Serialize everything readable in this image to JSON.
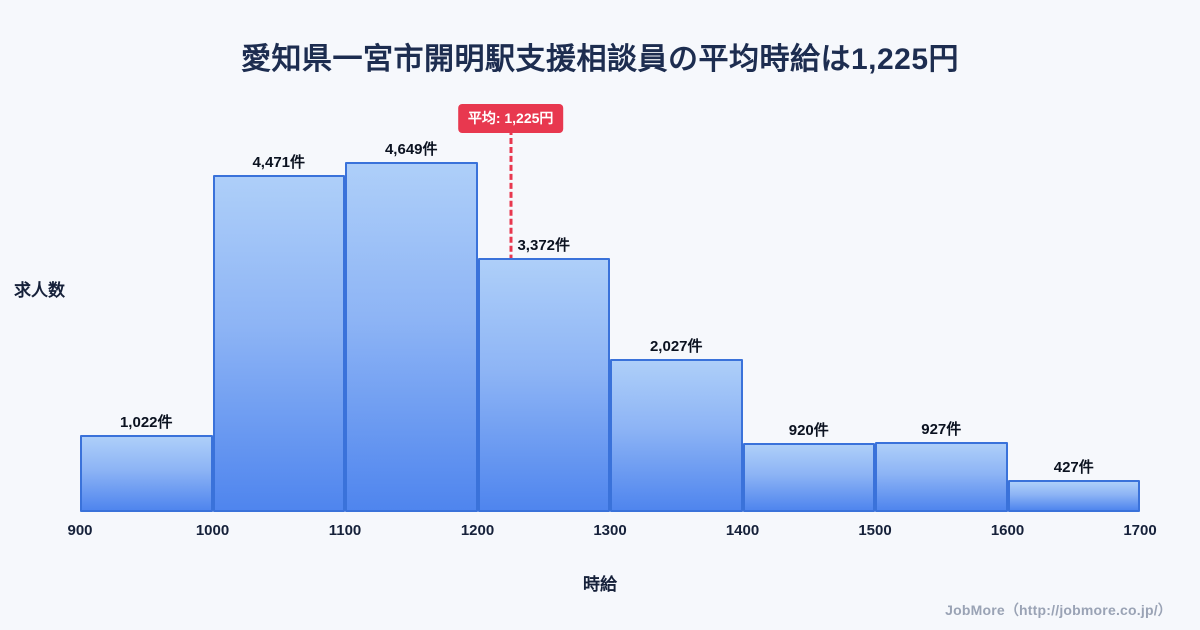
{
  "page": {
    "title": "愛知県一宮市開明駅支援相談員の平均時給は1,225円",
    "footer": "JobMore（http://jobmore.co.jp/）"
  },
  "chart_data": {
    "type": "bar",
    "title": "愛知県一宮市開明駅支援相談員の平均時給は1,225円",
    "xlabel": "時給",
    "ylabel": "求人数",
    "bin_edges": [
      900,
      1000,
      1100,
      1200,
      1300,
      1400,
      1500,
      1600,
      1700
    ],
    "categories": [
      "900-1000",
      "1000-1100",
      "1100-1200",
      "1200-1300",
      "1300-1400",
      "1400-1500",
      "1500-1600",
      "1600-1700"
    ],
    "values": [
      1022,
      4471,
      4649,
      3372,
      2027,
      920,
      927,
      427
    ],
    "value_labels": [
      "1,022件",
      "4,471件",
      "4,649件",
      "3,372件",
      "2,027件",
      "920件",
      "927件",
      "427件"
    ],
    "x_range": [
      900,
      1700
    ],
    "average": {
      "value": 1225,
      "label": "平均: 1,225円"
    },
    "grid": false,
    "legend": false,
    "colors": {
      "bar_fill_top": "#aecff9",
      "bar_fill_bottom": "#4f85ee",
      "bar_border": "#3a72da",
      "average_line": "#e8384f",
      "title_text": "#1d2d50",
      "background": "#f6f8fc"
    }
  }
}
